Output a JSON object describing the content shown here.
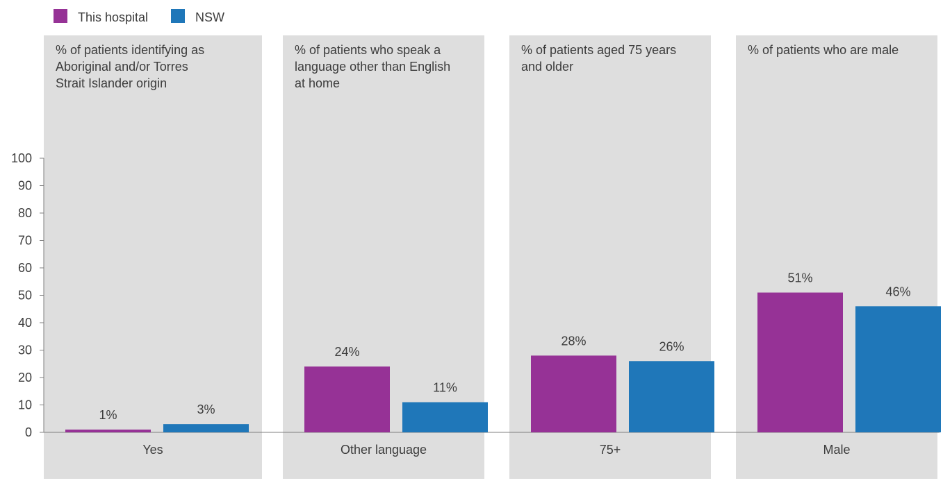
{
  "chart_data": {
    "type": "bar",
    "legend": {
      "placement": "top-left",
      "entries": [
        {
          "name": "This hospital",
          "color": "#963296"
        },
        {
          "name": "NSW",
          "color": "#1f77b9"
        }
      ]
    },
    "ylim": [
      0,
      100
    ],
    "yticks": [
      "0",
      "10",
      "20",
      "30",
      "40",
      "50",
      "60",
      "70",
      "80",
      "90",
      "100"
    ],
    "grid": false,
    "panel_color": "#dedede",
    "series": [
      {
        "name": "This hospital",
        "color": "#963296"
      },
      {
        "name": "NSW",
        "color": "#1f77b9"
      }
    ],
    "panels": [
      {
        "title": "% of patients identifying as Aboriginal and/or Torres Strait Islander origin",
        "title_lines": [
          "% of patients identifying as",
          "Aboriginal and/or Torres",
          "Strait Islander origin"
        ],
        "category": "Yes",
        "values": [
          1,
          3
        ],
        "labels": [
          "1%",
          "3%"
        ]
      },
      {
        "title": "% of patients who speak a language other than English at home",
        "title_lines": [
          "% of patients who speak a",
          "language other than English",
          "at home"
        ],
        "category": "Other language",
        "values": [
          24,
          11
        ],
        "labels": [
          "24%",
          "11%"
        ]
      },
      {
        "title": "% of patients aged 75 years and older",
        "title_lines": [
          "% of patients aged 75 years",
          "and older"
        ],
        "category": "75+",
        "values": [
          28,
          26
        ],
        "labels": [
          "28%",
          "26%"
        ]
      },
      {
        "title": "% of patients who are male",
        "title_lines": [
          "% of patients who are male"
        ],
        "category": "Male",
        "values": [
          51,
          46
        ],
        "labels": [
          "51%",
          "46%"
        ]
      }
    ]
  }
}
